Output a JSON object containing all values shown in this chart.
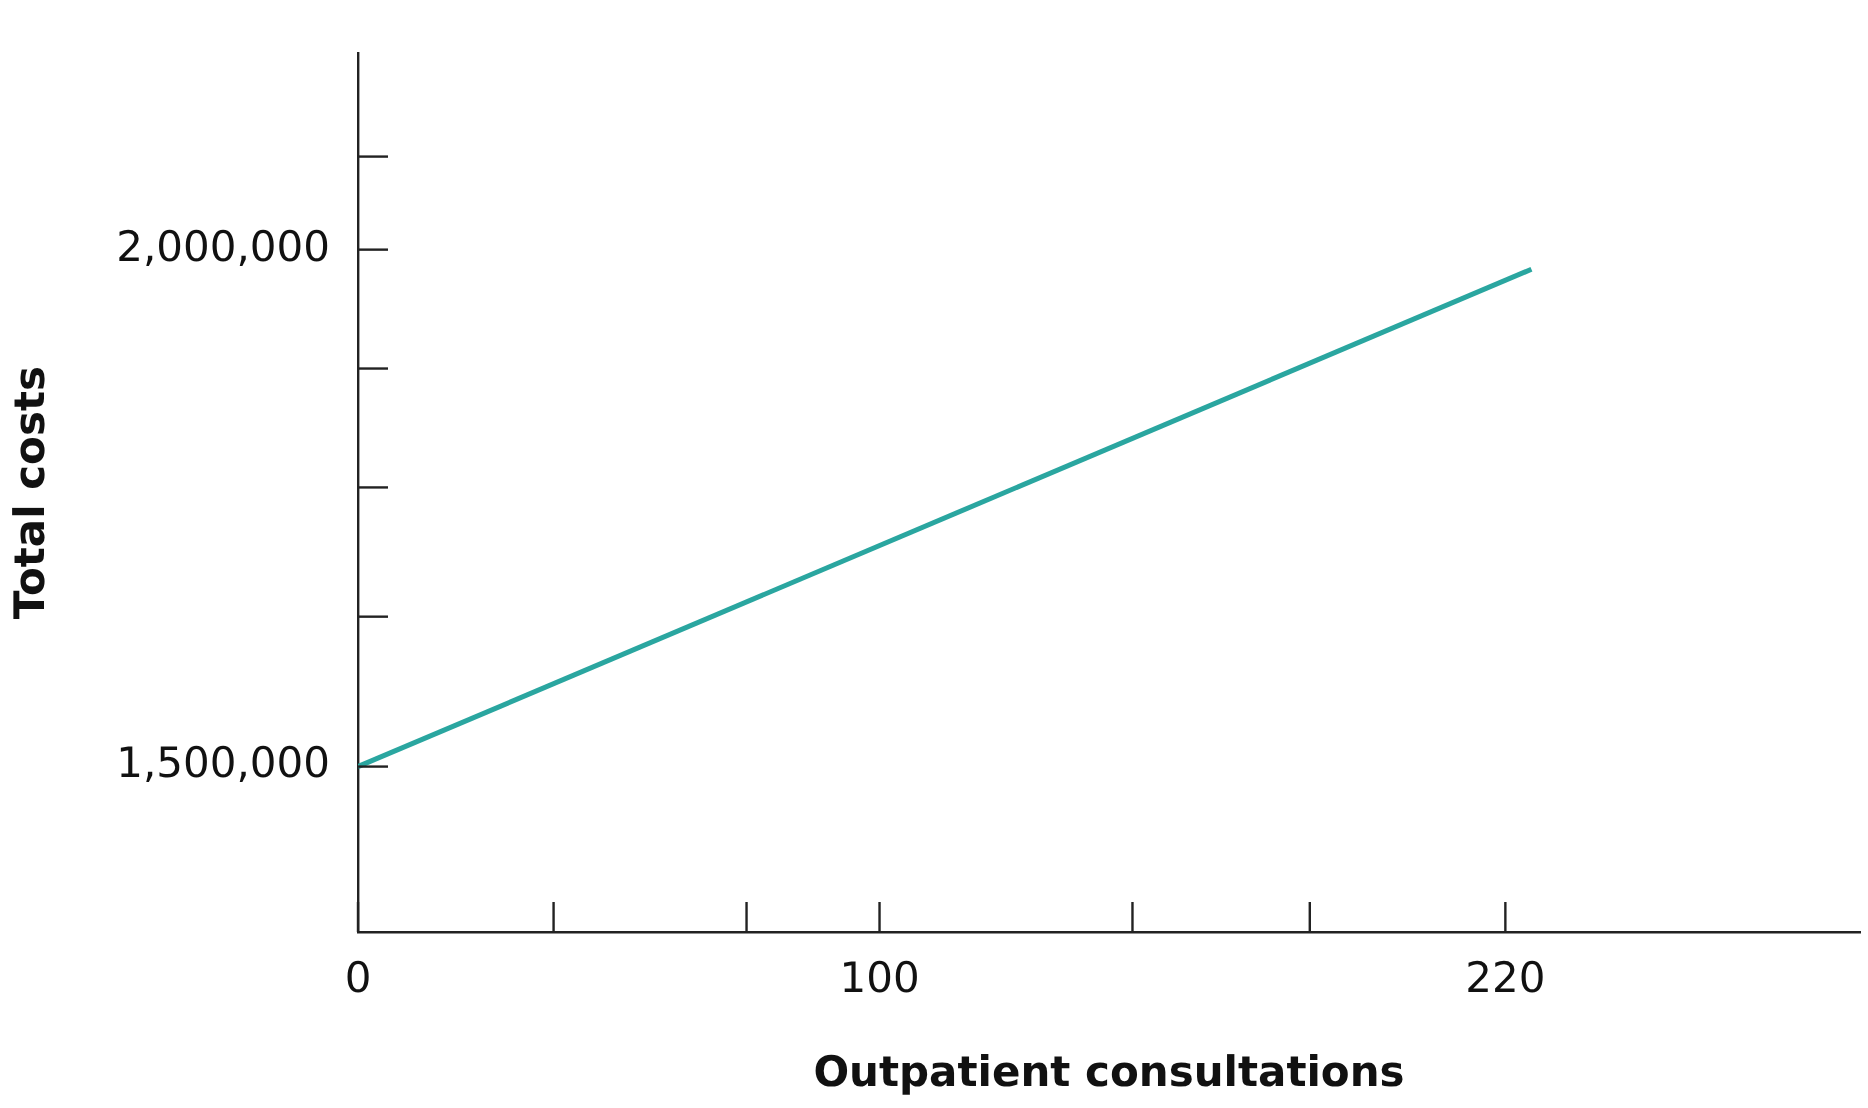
{
  "chart_data": {
    "type": "line",
    "xlabel": "Outpatient consultations",
    "ylabel": "Total costs",
    "x": [
      0,
      225
    ],
    "series": [
      {
        "color": "#2aa6a0",
        "values": [
          1500000,
          1981000
        ]
      }
    ],
    "xlim": [
      0,
      288
    ],
    "xticks": [
      0,
      {
        "value": 37.5,
        "label": null
      },
      {
        "value": 74.5,
        "label": null
      },
      100,
      {
        "value": 148.5,
        "label": null
      },
      {
        "value": 182.5,
        "label": null
      },
      220
    ],
    "ylim": [
      1340000,
      2190000
    ],
    "yticks": [
      {
        "value": 1500000,
        "label": "1,500,000"
      },
      {
        "value": 1645000,
        "label": null
      },
      {
        "value": 1770000,
        "label": null
      },
      {
        "value": 1885000,
        "label": null
      },
      {
        "value": 2000000,
        "label": "2,000,000"
      },
      {
        "value": 2090000,
        "label": null
      }
    ],
    "grid": false,
    "legend": false,
    "marker": "none",
    "line_style": "solid"
  }
}
